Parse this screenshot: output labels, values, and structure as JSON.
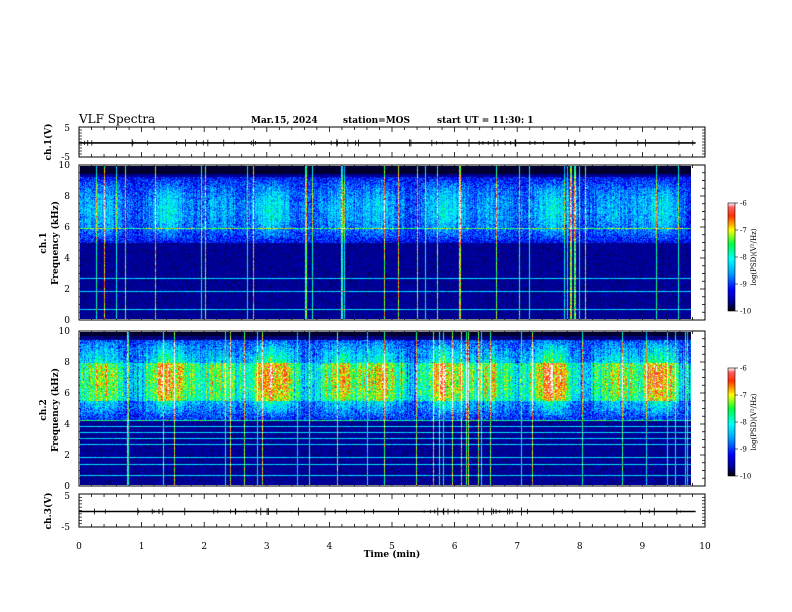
{
  "header": {
    "title": "VLF Spectra",
    "date": "Mar.15, 2024",
    "station": "station=MOS",
    "start": "start UT =  11:30: 1"
  },
  "chart_data": [
    {
      "type": "line",
      "panel": "ch1-waveform",
      "ylabel": "ch.1(V)",
      "ylim": [
        -5,
        5
      ],
      "yticks": [
        "5",
        "-5"
      ],
      "xlim": [
        0,
        10
      ],
      "baseline": -0.3,
      "color": "#000000"
    },
    {
      "type": "heatmap",
      "panel": "ch1-spectrogram",
      "ylabel": "ch.1\nFrequency (kHz)",
      "ylim": [
        0,
        10
      ],
      "yticks": [
        "0",
        "2",
        "4",
        "6",
        "8",
        "10"
      ],
      "xlim": [
        0,
        9.85
      ],
      "noise_band_khz": [
        5.0,
        9.3
      ],
      "hum_lines_khz": [
        1.8,
        2.6,
        5.9,
        0.6
      ],
      "colorbar": {
        "label": "log(PSD)(V²/Hz)",
        "ticks": [
          "-6",
          "-7",
          "-8",
          "-9",
          "-10"
        ],
        "range": [
          -10,
          -6
        ]
      }
    },
    {
      "type": "heatmap",
      "panel": "ch2-spectrogram",
      "ylabel": "ch.2\nFrequency (kHz)",
      "ylim": [
        0,
        10
      ],
      "yticks": [
        "0",
        "2",
        "4",
        "6",
        "8",
        "10"
      ],
      "xlim": [
        0,
        9.85
      ],
      "noise_band_khz": [
        4.2,
        9.8
      ],
      "peak_band_khz": [
        5.5,
        8.0
      ],
      "hum_lines_khz": [
        0.6,
        1.3,
        1.8,
        2.6,
        3.0,
        3.4,
        3.8,
        4.2
      ],
      "colorbar": {
        "label": "log(PSD)(V²/Hz)",
        "ticks": [
          "-6",
          "-7",
          "-8",
          "-9",
          "-10"
        ],
        "range": [
          -10,
          -6
        ]
      }
    },
    {
      "type": "line",
      "panel": "ch3-waveform",
      "ylabel": "ch.3(V)",
      "ylim": [
        -5,
        5
      ],
      "yticks": [
        "5",
        "-5"
      ],
      "xlim": [
        0,
        10
      ],
      "baseline": -0.3,
      "color": "#000000"
    }
  ],
  "x_axis": {
    "label": "Time (min)",
    "ticks": [
      "0",
      "1",
      "2",
      "3",
      "4",
      "5",
      "6",
      "7",
      "8",
      "9",
      "10"
    ],
    "range": [
      0,
      10
    ]
  }
}
